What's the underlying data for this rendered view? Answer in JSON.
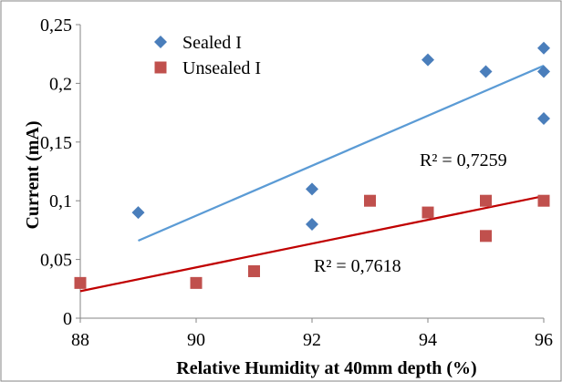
{
  "chart_data": {
    "type": "scatter",
    "title": "",
    "xlabel": "Relative Humidity at 40mm depth (%)",
    "ylabel": "Current (mA)",
    "xlim": [
      88,
      96
    ],
    "ylim": [
      0,
      0.25
    ],
    "x_ticks": [
      "88",
      "90",
      "92",
      "94",
      "96"
    ],
    "y_ticks": [
      "0",
      "0,05",
      "0,1",
      "0,15",
      "0,2",
      "0,25"
    ],
    "grid": false,
    "legend_position": "top-left",
    "series": [
      {
        "name": "Sealed I",
        "marker": "diamond",
        "color": "#4a7ebb",
        "points": [
          {
            "x": 89,
            "y": 0.09
          },
          {
            "x": 92,
            "y": 0.11
          },
          {
            "x": 92,
            "y": 0.08
          },
          {
            "x": 94,
            "y": 0.22
          },
          {
            "x": 95,
            "y": 0.21
          },
          {
            "x": 96,
            "y": 0.23
          },
          {
            "x": 96,
            "y": 0.21
          },
          {
            "x": 96,
            "y": 0.17
          }
        ],
        "trendline": {
          "color": "#5b9bd5",
          "x": [
            89,
            96
          ],
          "y": [
            0.066,
            0.215
          ],
          "r2_label": "R² = 0,7259"
        }
      },
      {
        "name": "Unsealed I",
        "marker": "square",
        "color": "#c0504d",
        "points": [
          {
            "x": 88,
            "y": 0.03
          },
          {
            "x": 90,
            "y": 0.03
          },
          {
            "x": 91,
            "y": 0.04
          },
          {
            "x": 93,
            "y": 0.1
          },
          {
            "x": 94,
            "y": 0.09
          },
          {
            "x": 95,
            "y": 0.1
          },
          {
            "x": 95,
            "y": 0.07
          },
          {
            "x": 96,
            "y": 0.1
          }
        ],
        "trendline": {
          "color": "#c00000",
          "x": [
            88,
            96
          ],
          "y": [
            0.023,
            0.104
          ],
          "r2_label": "R² = 0,7618"
        }
      }
    ]
  }
}
